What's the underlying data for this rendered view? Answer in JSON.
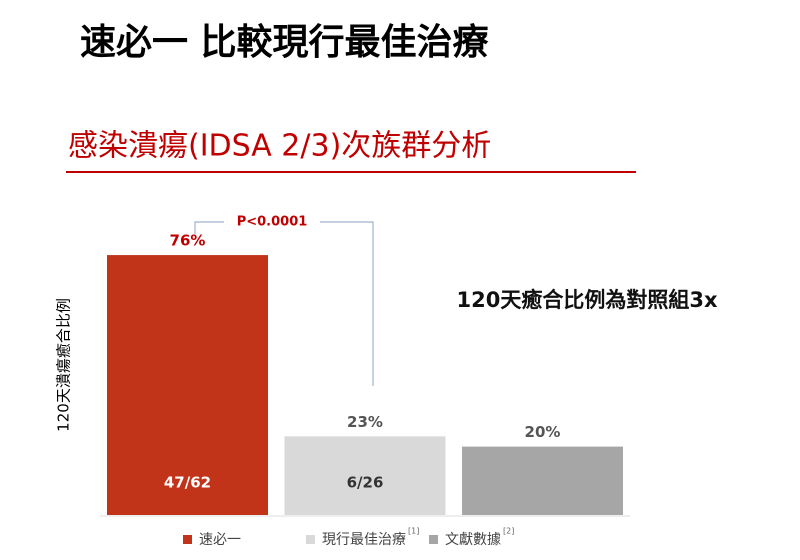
{
  "title": "速必一 比較現行最佳治療",
  "subtitle": "感染潰瘍(IDSA 2/3)次族群分析",
  "chart_data": {
    "type": "bar",
    "y_label": "120天潰瘍癒合比例",
    "annotation": "P<0.0001",
    "callout": "120天癒合比例為對照組3x",
    "series": [
      {
        "name": "速必一",
        "color": "#c23419",
        "values": [
          76
        ],
        "value_labels": [
          "76%"
        ],
        "inner_labels": [
          "47/62"
        ],
        "inner_color": "#ffffff"
      },
      {
        "name": "現行最佳治療",
        "note": "[1]",
        "color": "#d9d9d9",
        "values": [
          23
        ],
        "value_labels": [
          "23%"
        ],
        "inner_labels": [
          "6/26"
        ],
        "inner_color": "#333333"
      },
      {
        "name": "文獻數據",
        "note": "[2]",
        "color": "#a6a6a6",
        "values": [
          20
        ],
        "value_labels": [
          "20%"
        ]
      }
    ]
  }
}
